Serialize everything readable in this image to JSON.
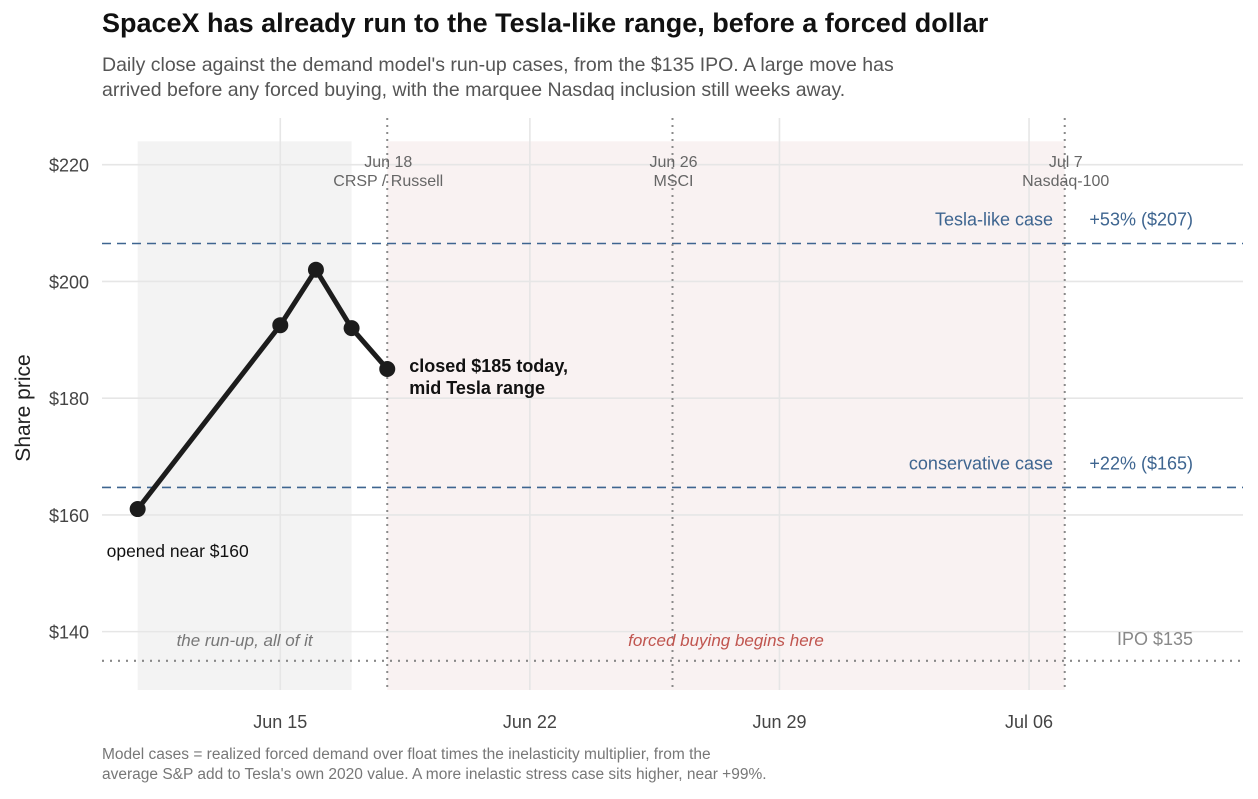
{
  "title": "SpaceX has already run to the Tesla-like range, before a forced dollar",
  "subtitle_lines": [
    "Daily close against the demand model's run-up cases, from the $135 IPO. A large move has",
    "arrived before any forced buying, with the marquee Nasdaq inclusion still weeks away."
  ],
  "caption_lines": [
    "Model cases = realized forced demand over float times the inelasticity multiplier, from the",
    "average S&P add to Tesla's own 2020 value. A more inelastic stress case sits higher, near +99%."
  ],
  "chart_data": {
    "type": "line",
    "title": "SpaceX has already run to the Tesla-like range, before a forced dollar",
    "ylabel": "Share price",
    "xlabel": "",
    "x_axis": {
      "type": "date",
      "range": [
        "2026-06-10",
        "2026-07-12"
      ],
      "ticks": [
        "2026-06-15",
        "2026-06-22",
        "2026-06-29",
        "2026-07-06"
      ],
      "tick_labels": [
        "Jun 15",
        "Jun 22",
        "Jun 29",
        "Jul 06"
      ]
    },
    "y_axis": {
      "range": [
        130,
        228
      ],
      "ticks": [
        140,
        160,
        180,
        200,
        220
      ],
      "tick_labels": [
        "$140",
        "$160",
        "$180",
        "$200",
        "$220"
      ]
    },
    "grid": true,
    "series": [
      {
        "x": [
          "2026-06-11",
          "2026-06-15",
          "2026-06-16",
          "2026-06-17",
          "2026-06-18"
        ],
        "values": [
          161,
          192.5,
          202,
          192,
          185
        ],
        "color": "#1c1c1c"
      }
    ],
    "shaded_regions": [
      {
        "x0": "2026-06-11",
        "x1": "2026-06-17",
        "y0": 130,
        "y1": 224,
        "label": "the run-up, all of it",
        "color": "#f3f3f3"
      },
      {
        "x0": "2026-06-18",
        "x1": "2026-07-07",
        "y0": 130,
        "y1": 224,
        "label": "forced buying begins here",
        "color": "#f9f2f2"
      }
    ],
    "reference_lines": [
      {
        "y": 206.5,
        "label": "Tesla-like case",
        "pct": "+53%",
        "value_label": "($207)",
        "color": "#3e6590"
      },
      {
        "y": 164.7,
        "label": "conservative case",
        "pct": "+22%",
        "value_label": "($165)",
        "color": "#3e6590"
      },
      {
        "y": 135,
        "label": "IPO",
        "value_label": "$135",
        "color": "#888888"
      }
    ],
    "events": [
      {
        "x": "2026-06-18",
        "date_label": "Jun 18",
        "label": "CRSP / Russell"
      },
      {
        "x": "2026-06-26",
        "date_label": "Jun 26",
        "label": "MSCI"
      },
      {
        "x": "2026-07-07",
        "date_label": "Jul 7",
        "label": "Nasdaq-100"
      }
    ],
    "annotations": [
      {
        "x": "2026-06-11",
        "y": 161,
        "text": "opened near $160",
        "bold": false
      },
      {
        "x": "2026-06-18",
        "y": 185,
        "text_lines": [
          "closed $185 today,",
          "mid Tesla range"
        ],
        "bold": true
      }
    ],
    "colors": {
      "line": "#1c1c1c",
      "reference": "#3e6590",
      "forced_text": "#c0554f",
      "grid": "#e6e6e6"
    }
  }
}
